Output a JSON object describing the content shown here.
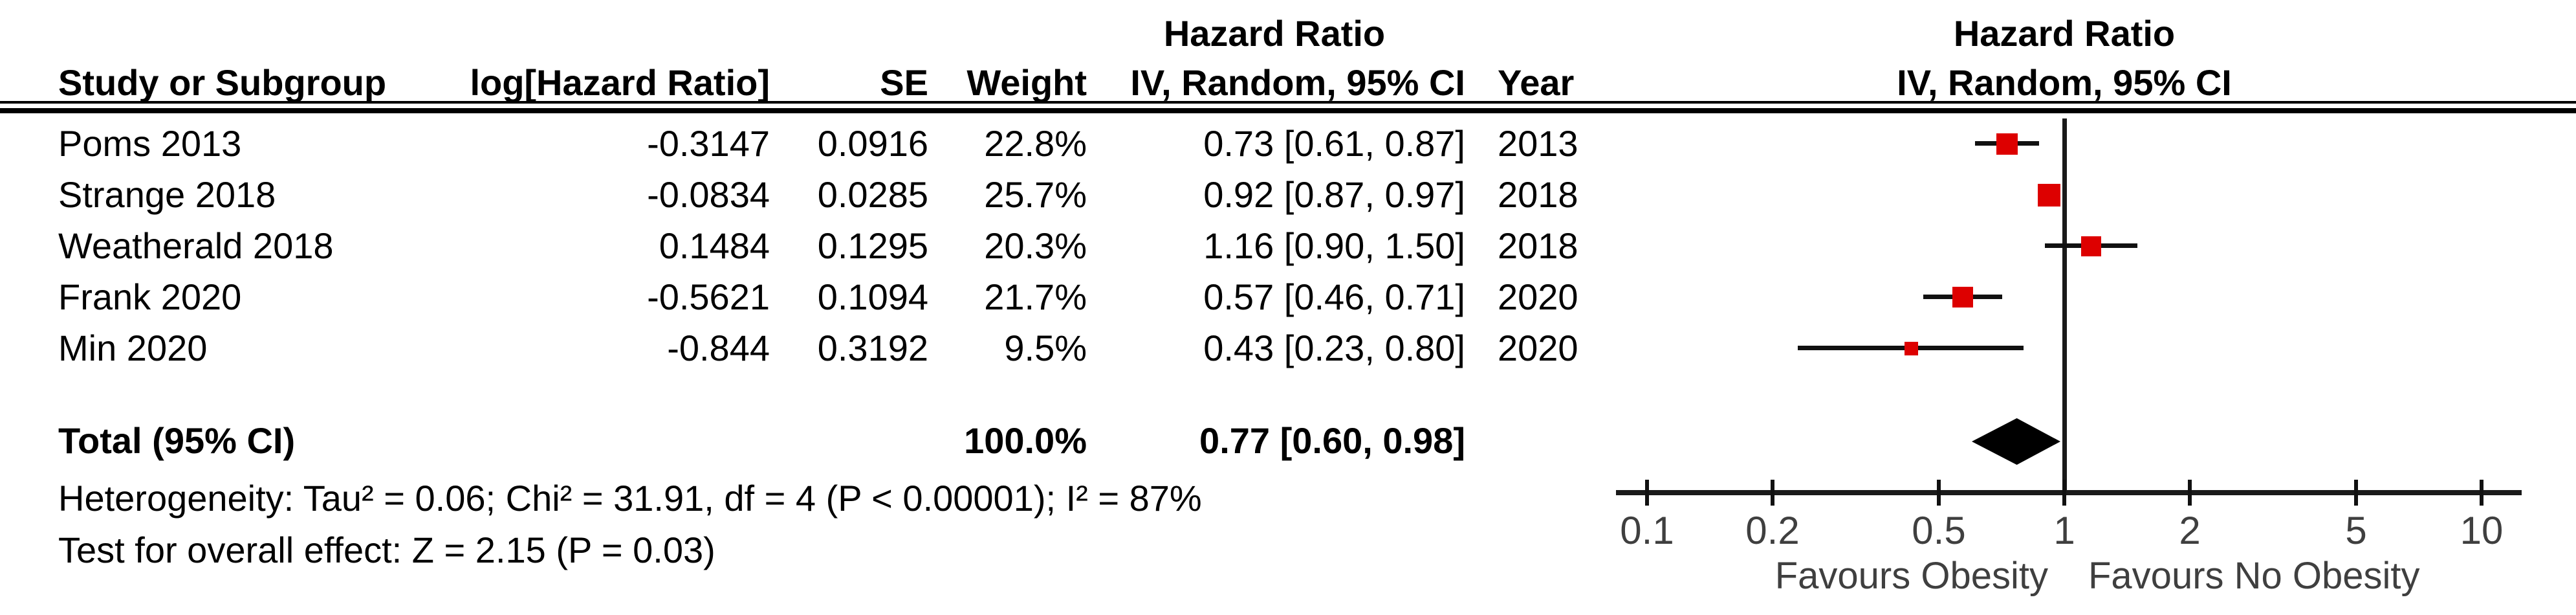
{
  "chart_data": {
    "type": "scatter",
    "subtype": "forest_plot_meta_analysis",
    "effect_measure": "Hazard Ratio",
    "group_header_left": "Hazard Ratio",
    "group_header_right": "Hazard Ratio",
    "sub_header_left": "IV, Random, 95% CI",
    "sub_header_right": "IV, Random, 95% CI",
    "columns": {
      "study": "Study or Subgroup",
      "loghr": "log[Hazard Ratio]",
      "se": "SE",
      "weight": "Weight",
      "hr_ci": "IV, Random, 95% CI",
      "year": "Year"
    },
    "studies": [
      {
        "name": "Poms 2013",
        "log_hr": "-0.3147",
        "se": "0.0916",
        "weight": "22.8%",
        "hr_ci_text": "0.73 [0.61, 0.87]",
        "year": "2013",
        "hr": 0.73,
        "ci_low": 0.61,
        "ci_high": 0.87,
        "weight_pct": 22.8
      },
      {
        "name": "Strange 2018",
        "log_hr": "-0.0834",
        "se": "0.0285",
        "weight": "25.7%",
        "hr_ci_text": "0.92 [0.87, 0.97]",
        "year": "2018",
        "hr": 0.92,
        "ci_low": 0.87,
        "ci_high": 0.97,
        "weight_pct": 25.7
      },
      {
        "name": "Weatherald 2018",
        "log_hr": "0.1484",
        "se": "0.1295",
        "weight": "20.3%",
        "hr_ci_text": "1.16 [0.90, 1.50]",
        "year": "2018",
        "hr": 1.16,
        "ci_low": 0.9,
        "ci_high": 1.5,
        "weight_pct": 20.3
      },
      {
        "name": "Frank 2020",
        "log_hr": "-0.5621",
        "se": "0.1094",
        "weight": "21.7%",
        "hr_ci_text": "0.57 [0.46, 0.71]",
        "year": "2020",
        "hr": 0.57,
        "ci_low": 0.46,
        "ci_high": 0.71,
        "weight_pct": 21.7
      },
      {
        "name": "Min 2020",
        "log_hr": "-0.844",
        "se": "0.3192",
        "weight": "9.5%",
        "hr_ci_text": "0.43 [0.23, 0.80]",
        "year": "2020",
        "hr": 0.43,
        "ci_low": 0.23,
        "ci_high": 0.8,
        "weight_pct": 9.5
      }
    ],
    "total": {
      "label": "Total (95% CI)",
      "weight": "100.0%",
      "hr_ci_text": "0.77 [0.60, 0.98]",
      "hr": 0.77,
      "ci_low": 0.6,
      "ci_high": 0.98
    },
    "heterogeneity": "Heterogeneity: Tau² = 0.06; Chi² = 31.91, df = 4 (P < 0.00001); I² = 87%",
    "overall_effect": "Test for overall effect: Z = 2.15 (P = 0.03)",
    "x_axis": {
      "scale": "log",
      "range": [
        0.1,
        10
      ],
      "ticks": [
        0.1,
        0.2,
        0.5,
        1,
        2,
        5,
        10
      ],
      "tick_labels": [
        "0.1",
        "0.2",
        "0.5",
        "1",
        "2",
        "5",
        "10"
      ],
      "no_effect_line": 1,
      "left_label": "Favours Obesity",
      "right_label": "Favours No Obesity"
    }
  },
  "colors": {
    "marker_square": "#dd0000",
    "diamond": "#000000",
    "line": "#111111",
    "text": "#000000",
    "axis_text": "#3f3f3f",
    "background": "#ffffff"
  }
}
